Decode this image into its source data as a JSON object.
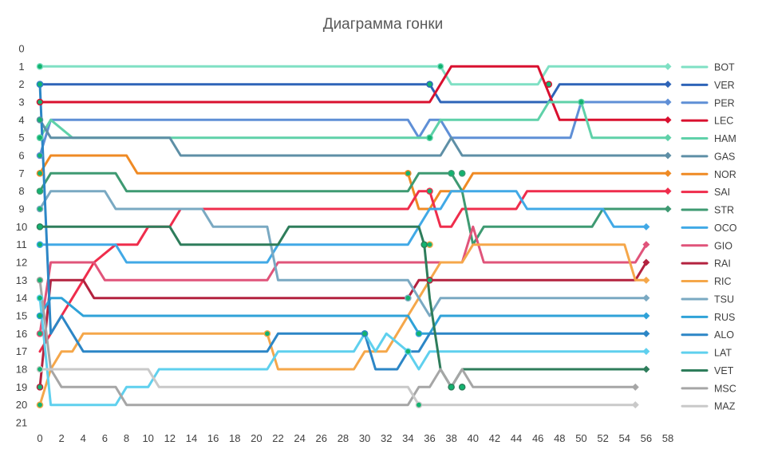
{
  "chart_data": {
    "type": "line",
    "title": "Диаграмма гонки",
    "xlabel": "",
    "ylabel": "",
    "xlim": [
      0,
      58
    ],
    "ylim": [
      0,
      21
    ],
    "y_inverted": true,
    "x_ticks": [
      0,
      2,
      4,
      6,
      8,
      10,
      12,
      14,
      16,
      18,
      20,
      22,
      24,
      26,
      28,
      30,
      32,
      34,
      36,
      38,
      40,
      42,
      44,
      46,
      48,
      50,
      52,
      54,
      56,
      58
    ],
    "y_ticks": [
      0,
      1,
      2,
      3,
      4,
      5,
      6,
      7,
      8,
      9,
      10,
      11,
      12,
      13,
      14,
      15,
      16,
      17,
      18,
      19,
      20,
      21
    ],
    "grid": false,
    "legend_position": "right",
    "series": [
      {
        "name": "BOT",
        "color": "#7fe0c4",
        "points": [
          [
            0,
            1
          ],
          [
            37,
            1
          ],
          [
            38,
            2
          ],
          [
            46,
            2
          ],
          [
            47,
            1
          ],
          [
            58,
            1
          ]
        ],
        "markers": [
          [
            0,
            1
          ],
          [
            37,
            1
          ]
        ]
      },
      {
        "name": "VER",
        "color": "#2e64b8",
        "points": [
          [
            0,
            2
          ],
          [
            36,
            2
          ],
          [
            37,
            3
          ],
          [
            47,
            3
          ],
          [
            48,
            2
          ],
          [
            58,
            2
          ]
        ],
        "markers": [
          [
            0,
            2
          ],
          [
            36,
            2
          ]
        ]
      },
      {
        "name": "PER",
        "color": "#5f8fd6",
        "points": [
          [
            0,
            6
          ],
          [
            1,
            4
          ],
          [
            34,
            4
          ],
          [
            35,
            5
          ],
          [
            36,
            4
          ],
          [
            37,
            4
          ],
          [
            38,
            5
          ],
          [
            39,
            5
          ],
          [
            40,
            5
          ],
          [
            49,
            5
          ],
          [
            50,
            3
          ],
          [
            58,
            3
          ]
        ],
        "markers": [
          [
            0,
            6
          ]
        ]
      },
      {
        "name": "LEC",
        "color": "#d9102f",
        "points": [
          [
            0,
            3
          ],
          [
            36,
            3
          ],
          [
            38,
            1
          ],
          [
            46,
            1
          ],
          [
            48,
            4
          ],
          [
            58,
            4
          ]
        ],
        "markers": [
          [
            0,
            3
          ],
          [
            47,
            2
          ]
        ]
      },
      {
        "name": "HAM",
        "color": "#5fd1a9",
        "points": [
          [
            0,
            5
          ],
          [
            1,
            4
          ],
          [
            3,
            5
          ],
          [
            13,
            5
          ],
          [
            35,
            5
          ],
          [
            36,
            5
          ],
          [
            37,
            4
          ],
          [
            46,
            4
          ],
          [
            47,
            3
          ],
          [
            50,
            3
          ],
          [
            51,
            5
          ],
          [
            58,
            5
          ]
        ],
        "markers": [
          [
            0,
            5
          ],
          [
            36,
            5
          ],
          [
            50,
            3
          ]
        ]
      },
      {
        "name": "GAS",
        "color": "#5e8fa6",
        "points": [
          [
            0,
            4
          ],
          [
            1,
            5
          ],
          [
            12,
            5
          ],
          [
            13,
            6
          ],
          [
            37,
            6
          ],
          [
            38,
            5
          ],
          [
            39,
            6
          ],
          [
            58,
            6
          ]
        ],
        "markers": [
          [
            0,
            4
          ]
        ]
      },
      {
        "name": "NOR",
        "color": "#ef8a24",
        "points": [
          [
            0,
            7
          ],
          [
            1,
            6
          ],
          [
            8,
            6
          ],
          [
            9,
            7
          ],
          [
            34,
            7
          ],
          [
            35,
            9
          ],
          [
            36,
            9
          ],
          [
            37,
            8
          ],
          [
            39,
            8
          ],
          [
            40,
            7
          ],
          [
            58,
            7
          ]
        ],
        "markers": [
          [
            0,
            7
          ],
          [
            34,
            7
          ]
        ]
      },
      {
        "name": "SAI",
        "color": "#ef2d4c",
        "points": [
          [
            0,
            17
          ],
          [
            1,
            16
          ],
          [
            2,
            15
          ],
          [
            3,
            14
          ],
          [
            4,
            13
          ],
          [
            5,
            12
          ],
          [
            7,
            11
          ],
          [
            9,
            11
          ],
          [
            10,
            10
          ],
          [
            12,
            10
          ],
          [
            13,
            9
          ],
          [
            16,
            9
          ],
          [
            17,
            9
          ],
          [
            34,
            9
          ],
          [
            35,
            8
          ],
          [
            36,
            8
          ],
          [
            37,
            10
          ],
          [
            38,
            10
          ],
          [
            39,
            9
          ],
          [
            44,
            9
          ],
          [
            45,
            8
          ],
          [
            58,
            8
          ]
        ],
        "markers": [
          [
            36,
            8
          ]
        ]
      },
      {
        "name": "STR",
        "color": "#3e9a72",
        "points": [
          [
            0,
            8
          ],
          [
            1,
            7
          ],
          [
            7,
            7
          ],
          [
            8,
            8
          ],
          [
            34,
            8
          ],
          [
            35,
            7
          ],
          [
            38,
            7
          ],
          [
            39,
            8
          ],
          [
            40,
            11
          ],
          [
            41,
            10
          ],
          [
            51,
            10
          ],
          [
            52,
            9
          ],
          [
            58,
            9
          ]
        ],
        "markers": [
          [
            0,
            8
          ],
          [
            38,
            7
          ],
          [
            39,
            7
          ]
        ]
      },
      {
        "name": "OCO",
        "color": "#41a9e6",
        "points": [
          [
            0,
            11
          ],
          [
            1,
            11
          ],
          [
            7,
            11
          ],
          [
            8,
            12
          ],
          [
            21,
            12
          ],
          [
            22,
            11
          ],
          [
            34,
            11
          ],
          [
            35,
            10
          ],
          [
            36,
            9
          ],
          [
            37,
            9
          ],
          [
            38,
            8
          ],
          [
            44,
            8
          ],
          [
            45,
            9
          ],
          [
            52,
            9
          ],
          [
            53,
            10
          ],
          [
            56,
            10
          ]
        ],
        "markers": [
          [
            0,
            11
          ]
        ]
      },
      {
        "name": "GIO",
        "color": "#e0547a",
        "points": [
          [
            0,
            16
          ],
          [
            1,
            12
          ],
          [
            5,
            12
          ],
          [
            6,
            13
          ],
          [
            21,
            13
          ],
          [
            22,
            12
          ],
          [
            39,
            12
          ],
          [
            40,
            10
          ],
          [
            41,
            12
          ],
          [
            55,
            12
          ],
          [
            56,
            11
          ]
        ],
        "markers": [
          [
            0,
            16
          ]
        ]
      },
      {
        "name": "RAI",
        "color": "#b3223f",
        "points": [
          [
            0,
            19
          ],
          [
            1,
            13
          ],
          [
            4,
            13
          ],
          [
            5,
            14
          ],
          [
            34,
            14
          ],
          [
            35,
            13
          ],
          [
            55,
            13
          ],
          [
            56,
            12
          ]
        ],
        "markers": [
          [
            0,
            19
          ],
          [
            36,
            13
          ]
        ]
      },
      {
        "name": "RIC",
        "color": "#f5a74a",
        "points": [
          [
            0,
            20
          ],
          [
            1,
            18
          ],
          [
            2,
            17
          ],
          [
            3,
            17
          ],
          [
            4,
            16
          ],
          [
            21,
            16
          ],
          [
            22,
            18
          ],
          [
            29,
            18
          ],
          [
            30,
            17
          ],
          [
            32,
            17
          ],
          [
            33,
            16
          ],
          [
            34,
            15
          ],
          [
            35,
            14
          ],
          [
            36,
            13
          ],
          [
            37,
            12
          ],
          [
            39,
            12
          ],
          [
            40,
            11
          ],
          [
            54,
            11
          ],
          [
            55,
            13
          ],
          [
            56,
            13
          ]
        ],
        "markers": [
          [
            0,
            20
          ],
          [
            21,
            16
          ],
          [
            36,
            11
          ]
        ]
      },
      {
        "name": "TSU",
        "color": "#7aa9c2",
        "points": [
          [
            0,
            9
          ],
          [
            1,
            8
          ],
          [
            6,
            8
          ],
          [
            7,
            9
          ],
          [
            15,
            9
          ],
          [
            16,
            10
          ],
          [
            21,
            10
          ],
          [
            22,
            13
          ],
          [
            34,
            13
          ],
          [
            35,
            14
          ],
          [
            36,
            15
          ],
          [
            37,
            14
          ],
          [
            56,
            14
          ]
        ],
        "markers": [
          [
            0,
            9
          ],
          [
            34,
            14
          ]
        ]
      },
      {
        "name": "RUS",
        "color": "#2fa2d8",
        "points": [
          [
            0,
            15
          ],
          [
            1,
            14
          ],
          [
            2,
            14
          ],
          [
            4,
            15
          ],
          [
            34,
            15
          ],
          [
            35,
            16
          ],
          [
            36,
            16
          ],
          [
            37,
            15
          ],
          [
            56,
            15
          ]
        ],
        "markers": [
          [
            0,
            15
          ],
          [
            35,
            16
          ]
        ]
      },
      {
        "name": "ALO",
        "color": "#2c86c6",
        "points": [
          [
            0,
            2
          ],
          [
            1,
            16
          ],
          [
            2,
            15
          ],
          [
            3,
            16
          ],
          [
            4,
            17
          ],
          [
            21,
            17
          ],
          [
            22,
            16
          ],
          [
            30,
            16
          ],
          [
            31,
            18
          ],
          [
            33,
            18
          ],
          [
            34,
            17
          ],
          [
            35,
            17
          ],
          [
            36,
            16
          ],
          [
            56,
            16
          ]
        ],
        "markers": [
          [
            0,
            2
          ],
          [
            30,
            16
          ]
        ]
      },
      {
        "name": "LAT",
        "color": "#5fd0ee",
        "points": [
          [
            0,
            14
          ],
          [
            1,
            20
          ],
          [
            7,
            20
          ],
          [
            8,
            19
          ],
          [
            10,
            19
          ],
          [
            11,
            18
          ],
          [
            21,
            18
          ],
          [
            22,
            17
          ],
          [
            29,
            17
          ],
          [
            30,
            16
          ],
          [
            31,
            17
          ],
          [
            32,
            16
          ],
          [
            34,
            17
          ],
          [
            35,
            18
          ],
          [
            36,
            17
          ],
          [
            56,
            17
          ]
        ],
        "markers": [
          [
            0,
            14
          ],
          [
            34,
            17
          ]
        ]
      },
      {
        "name": "VET",
        "color": "#2e7d5b",
        "points": [
          [
            0,
            10
          ],
          [
            12,
            10
          ],
          [
            13,
            11
          ],
          [
            22,
            11
          ],
          [
            23,
            10
          ],
          [
            35,
            10
          ],
          [
            35.5,
            11
          ],
          [
            36,
            14
          ],
          [
            37,
            18
          ],
          [
            38,
            19
          ],
          [
            39,
            18
          ],
          [
            56,
            18
          ]
        ],
        "markers": [
          [
            0,
            10
          ],
          [
            35.5,
            11
          ],
          [
            38,
            19
          ],
          [
            39,
            19
          ]
        ]
      },
      {
        "name": "MSC",
        "color": "#a6a6a6",
        "points": [
          [
            0,
            13
          ],
          [
            1,
            18
          ],
          [
            2,
            19
          ],
          [
            7,
            19
          ],
          [
            8,
            20
          ],
          [
            34,
            20
          ],
          [
            35,
            19
          ],
          [
            36,
            19
          ],
          [
            37,
            18
          ],
          [
            38,
            19
          ],
          [
            39,
            18
          ],
          [
            40,
            19
          ],
          [
            55,
            19
          ]
        ],
        "markers": [
          [
            0,
            13
          ]
        ]
      },
      {
        "name": "MAZ",
        "color": "#c9c9c9",
        "points": [
          [
            0,
            18
          ],
          [
            1,
            18
          ],
          [
            8,
            18
          ],
          [
            10,
            18
          ],
          [
            11,
            19
          ],
          [
            34,
            19
          ],
          [
            35,
            20
          ],
          [
            55,
            20
          ]
        ],
        "markers": [
          [
            0,
            18
          ],
          [
            35,
            20
          ]
        ]
      }
    ]
  }
}
